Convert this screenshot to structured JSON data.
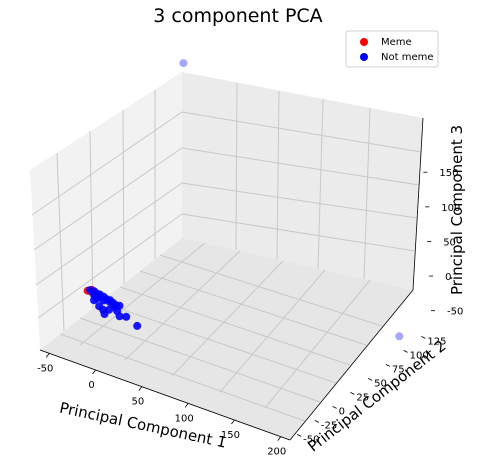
{
  "chart_data": {
    "type": "scatter",
    "projection": "3d",
    "title": "3 component PCA",
    "xlabel": "Principal Component 1",
    "ylabel": "Principal Component 2",
    "zlabel": "Principal Component 3",
    "xlim": [
      -60,
      210
    ],
    "ylim": [
      -60,
      140
    ],
    "zlim": [
      -75,
      185
    ],
    "xticks": [
      "-50",
      "0",
      "50",
      "100",
      "150",
      "200"
    ],
    "yticks": [
      "-50",
      "-25",
      "0",
      "25",
      "50",
      "75",
      "100",
      "125"
    ],
    "zticks": [
      "-50",
      "0",
      "50",
      "100",
      "150"
    ],
    "legend": {
      "position": "top-right"
    },
    "grid": true,
    "series": [
      {
        "name": "Meme",
        "color": "#ff0000",
        "points": [
          {
            "x": -35,
            "y": -22,
            "z": -8
          },
          {
            "x": -32,
            "y": -20,
            "z": -7
          },
          {
            "x": -33,
            "y": -18,
            "z": -10
          },
          {
            "x": -30,
            "y": -21,
            "z": -9
          },
          {
            "x": -31,
            "y": -23,
            "z": -6
          },
          {
            "x": -34,
            "y": -19,
            "z": -11
          }
        ]
      },
      {
        "name": "Not meme",
        "color": "#0000ff",
        "points": [
          {
            "x": -33,
            "y": -21,
            "z": -7
          },
          {
            "x": -30,
            "y": -19,
            "z": -9
          },
          {
            "x": -28,
            "y": -22,
            "z": -11
          },
          {
            "x": -26,
            "y": -20,
            "z": -10
          },
          {
            "x": -25,
            "y": -18,
            "z": -12
          },
          {
            "x": -24,
            "y": -23,
            "z": -13
          },
          {
            "x": -22,
            "y": -21,
            "z": -11
          },
          {
            "x": -20,
            "y": -19,
            "z": -12
          },
          {
            "x": -18,
            "y": -22,
            "z": -14
          },
          {
            "x": -16,
            "y": -20,
            "z": -13
          },
          {
            "x": -14,
            "y": -18,
            "z": -15
          },
          {
            "x": -12,
            "y": -21,
            "z": -14
          },
          {
            "x": -10,
            "y": -19,
            "z": -16
          },
          {
            "x": -8,
            "y": -22,
            "z": -15
          },
          {
            "x": -6,
            "y": -20,
            "z": -17
          },
          {
            "x": -5,
            "y": -23,
            "z": -16
          },
          {
            "x": -4,
            "y": -18,
            "z": -18
          },
          {
            "x": -20,
            "y": -26,
            "z": -20
          },
          {
            "x": -15,
            "y": -27,
            "z": -22
          },
          {
            "x": -10,
            "y": -25,
            "z": -21
          },
          {
            "x": -2,
            "y": -24,
            "z": -20
          },
          {
            "x": -12,
            "y": -29,
            "z": -25
          },
          {
            "x": 2,
            "y": -26,
            "z": -24
          },
          {
            "x": -26,
            "y": -25,
            "z": -15
          },
          {
            "x": 6,
            "y": -22,
            "z": -26
          },
          {
            "x": 20,
            "y": -25,
            "z": -30
          },
          {
            "x": -38,
            "y": 128,
            "z": 198
          },
          {
            "x": 180,
            "y": 132,
            "z": -95
          }
        ]
      }
    ]
  }
}
